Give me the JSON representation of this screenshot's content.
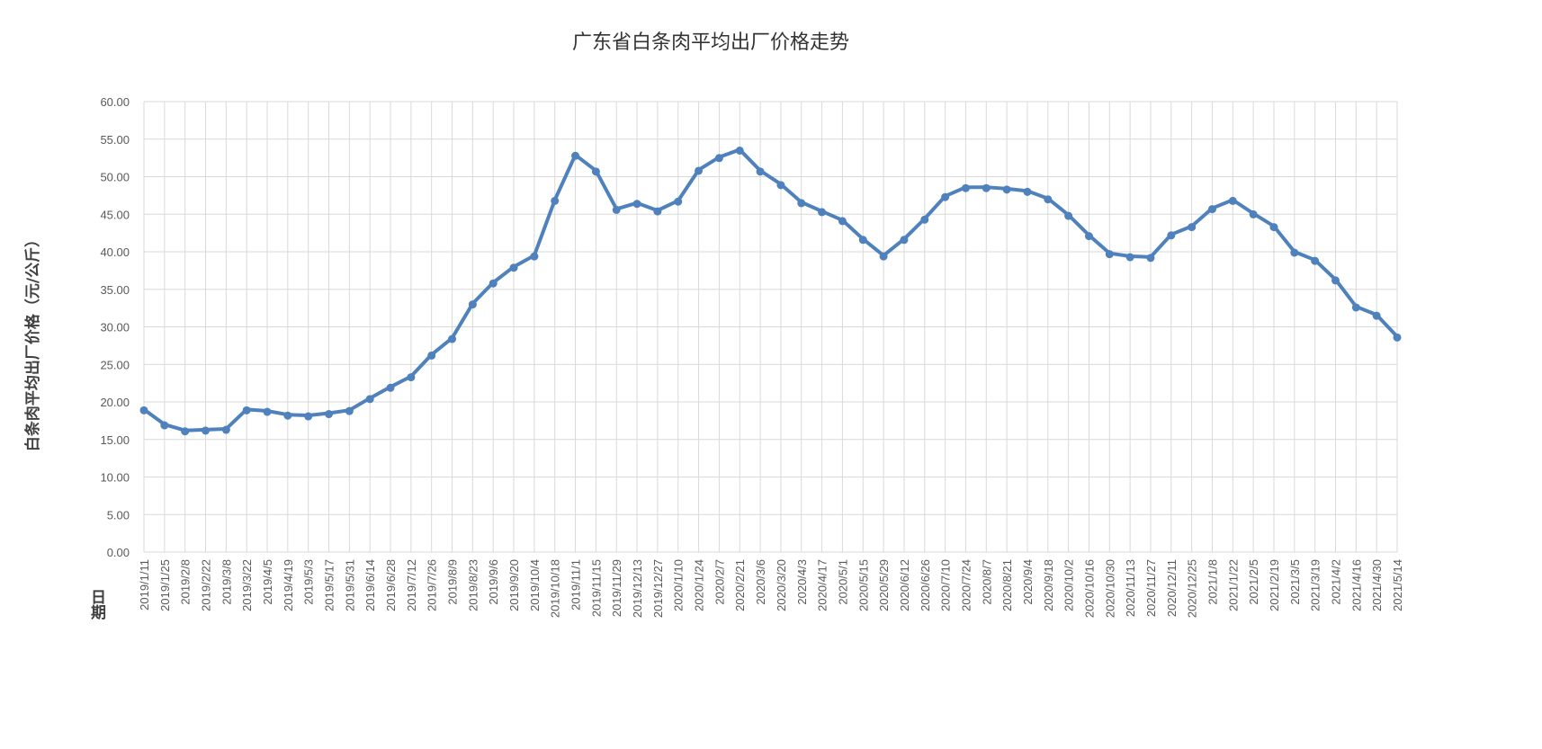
{
  "chart_data": {
    "type": "line",
    "title": "广东省白条肉平均出厂价格走势",
    "xlabel": "日期",
    "ylabel": "白条肉平均出厂价格（元/公斤）",
    "ylim": [
      0,
      60
    ],
    "yticks": [
      "0.00",
      "5.00",
      "10.00",
      "15.00",
      "20.00",
      "25.00",
      "30.00",
      "35.00",
      "40.00",
      "45.00",
      "50.00",
      "55.00",
      "60.00"
    ],
    "grid": true,
    "legend": "none",
    "color": "#4f81bd",
    "x": [
      "2019/1/11",
      "2019/1/25",
      "2019/2/8",
      "2019/2/22",
      "2019/3/8",
      "2019/3/22",
      "2019/4/5",
      "2019/4/19",
      "2019/5/3",
      "2019/5/17",
      "2019/5/31",
      "2019/6/14",
      "2019/6/28",
      "2019/7/12",
      "2019/7/26",
      "2019/8/9",
      "2019/8/23",
      "2019/9/6",
      "2019/9/20",
      "2019/10/4",
      "2019/10/18",
      "2019/11/1",
      "2019/11/15",
      "2019/11/29",
      "2019/12/13",
      "2019/12/27",
      "2020/1/10",
      "2020/1/24",
      "2020/2/7",
      "2020/2/21",
      "2020/3/6",
      "2020/3/20",
      "2020/4/3",
      "2020/4/17",
      "2020/5/1",
      "2020/5/15",
      "2020/5/29",
      "2020/6/12",
      "2020/6/26",
      "2020/7/10",
      "2020/7/24",
      "2020/8/7",
      "2020/8/21",
      "2020/9/4",
      "2020/9/18",
      "2020/10/2",
      "2020/10/16",
      "2020/10/30",
      "2020/11/13",
      "2020/11/27",
      "2020/12/11",
      "2020/12/25",
      "2021/1/8",
      "2021/1/22",
      "2021/2/5",
      "2021/2/19",
      "2021/3/5",
      "2021/3/19",
      "2021/4/2",
      "2021/4/16",
      "2021/4/30",
      "2021/5/14"
    ],
    "values": [
      19.0,
      17.0,
      16.2,
      16.3,
      16.4,
      19.0,
      18.8,
      18.3,
      18.2,
      18.5,
      18.9,
      20.5,
      22.0,
      23.4,
      26.3,
      28.5,
      33.1,
      35.9,
      38.0,
      39.5,
      46.9,
      52.9,
      50.8,
      45.7,
      46.5,
      45.5,
      46.8,
      50.9,
      52.6,
      53.6,
      50.8,
      49.0,
      46.6,
      45.4,
      44.2,
      41.7,
      39.5,
      41.7,
      44.4,
      47.4,
      48.6,
      48.6,
      48.4,
      48.1,
      47.1,
      44.9,
      42.2,
      39.8,
      39.4,
      39.3,
      42.3,
      43.4,
      45.8,
      46.9,
      45.1,
      43.4,
      40.0,
      38.9,
      36.3,
      32.7,
      31.6,
      28.7
    ]
  }
}
